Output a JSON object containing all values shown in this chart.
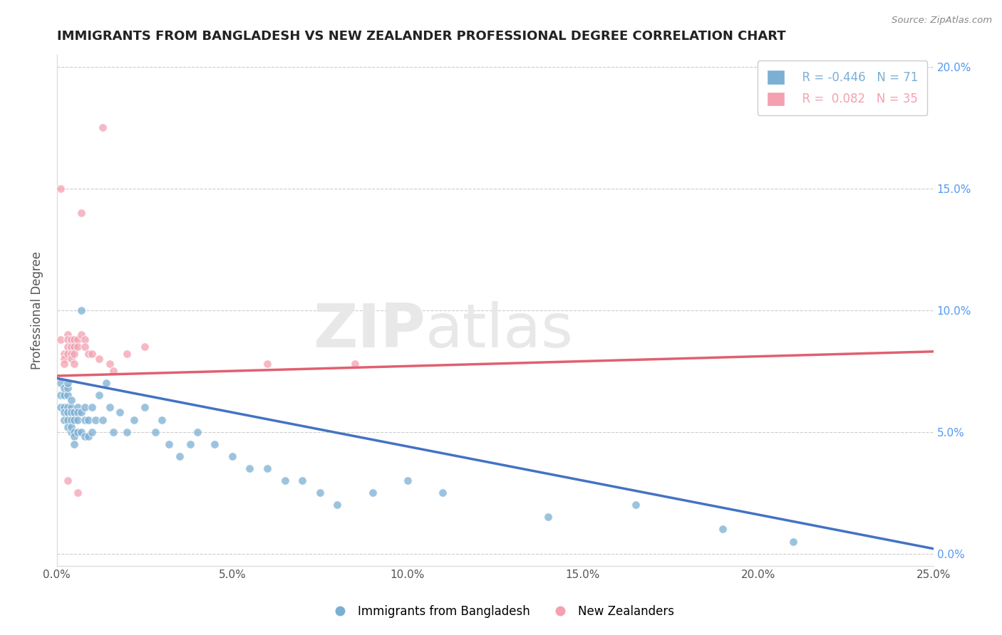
{
  "title": "IMMIGRANTS FROM BANGLADESH VS NEW ZEALANDER PROFESSIONAL DEGREE CORRELATION CHART",
  "source": "Source: ZipAtlas.com",
  "ylabel": "Professional Degree",
  "legend_blue_label": "Immigrants from Bangladesh",
  "legend_pink_label": "New Zealanders",
  "legend_blue_r": "R = -0.446",
  "legend_blue_n": "N = 71",
  "legend_pink_r": "R =  0.082",
  "legend_pink_n": "N = 35",
  "blue_color": "#7BAFD4",
  "pink_color": "#F4A0B0",
  "blue_line_color": "#4472C4",
  "pink_line_color": "#E06070",
  "watermark_zip": "ZIP",
  "watermark_atlas": "atlas",
  "xmin": 0.0,
  "xmax": 0.25,
  "ymin": -0.005,
  "ymax": 0.205,
  "right_ytick_vals": [
    0.0,
    0.05,
    0.1,
    0.15,
    0.2
  ],
  "x_tick_vals": [
    0.0,
    0.05,
    0.1,
    0.15,
    0.2,
    0.25
  ],
  "blue_scatter_x": [
    0.001,
    0.001,
    0.001,
    0.002,
    0.002,
    0.002,
    0.002,
    0.002,
    0.003,
    0.003,
    0.003,
    0.003,
    0.003,
    0.003,
    0.003,
    0.004,
    0.004,
    0.004,
    0.004,
    0.004,
    0.004,
    0.005,
    0.005,
    0.005,
    0.005,
    0.005,
    0.006,
    0.006,
    0.006,
    0.006,
    0.007,
    0.007,
    0.007,
    0.008,
    0.008,
    0.008,
    0.009,
    0.009,
    0.01,
    0.01,
    0.011,
    0.012,
    0.013,
    0.014,
    0.015,
    0.016,
    0.018,
    0.02,
    0.022,
    0.025,
    0.028,
    0.03,
    0.032,
    0.035,
    0.038,
    0.04,
    0.045,
    0.05,
    0.055,
    0.06,
    0.065,
    0.07,
    0.075,
    0.08,
    0.09,
    0.1,
    0.11,
    0.14,
    0.165,
    0.19,
    0.21
  ],
  "blue_scatter_y": [
    0.06,
    0.065,
    0.07,
    0.06,
    0.065,
    0.068,
    0.058,
    0.055,
    0.065,
    0.068,
    0.06,
    0.058,
    0.055,
    0.052,
    0.07,
    0.06,
    0.063,
    0.058,
    0.055,
    0.05,
    0.052,
    0.058,
    0.055,
    0.05,
    0.048,
    0.045,
    0.06,
    0.058,
    0.055,
    0.05,
    0.1,
    0.058,
    0.05,
    0.06,
    0.055,
    0.048,
    0.055,
    0.048,
    0.06,
    0.05,
    0.055,
    0.065,
    0.055,
    0.07,
    0.06,
    0.05,
    0.058,
    0.05,
    0.055,
    0.06,
    0.05,
    0.055,
    0.045,
    0.04,
    0.045,
    0.05,
    0.045,
    0.04,
    0.035,
    0.035,
    0.03,
    0.03,
    0.025,
    0.02,
    0.025,
    0.03,
    0.025,
    0.015,
    0.02,
    0.01,
    0.005
  ],
  "pink_scatter_x": [
    0.001,
    0.001,
    0.002,
    0.002,
    0.002,
    0.003,
    0.003,
    0.003,
    0.003,
    0.003,
    0.004,
    0.004,
    0.004,
    0.004,
    0.005,
    0.005,
    0.005,
    0.005,
    0.006,
    0.006,
    0.006,
    0.007,
    0.007,
    0.008,
    0.008,
    0.009,
    0.01,
    0.012,
    0.013,
    0.015,
    0.016,
    0.02,
    0.025,
    0.06,
    0.085
  ],
  "pink_scatter_y": [
    0.15,
    0.088,
    0.082,
    0.08,
    0.078,
    0.09,
    0.088,
    0.085,
    0.082,
    0.03,
    0.088,
    0.085,
    0.082,
    0.08,
    0.088,
    0.085,
    0.082,
    0.078,
    0.088,
    0.085,
    0.025,
    0.14,
    0.09,
    0.088,
    0.085,
    0.082,
    0.082,
    0.08,
    0.175,
    0.078,
    0.075,
    0.082,
    0.085,
    0.078,
    0.078
  ],
  "blue_trend_x_start": 0.0,
  "blue_trend_x_end": 0.25,
  "blue_trend_y_start": 0.072,
  "blue_trend_y_end": 0.002,
  "pink_trend_x_start": 0.0,
  "pink_trend_x_end": 0.25,
  "pink_trend_y_start": 0.073,
  "pink_trend_y_end": 0.083
}
